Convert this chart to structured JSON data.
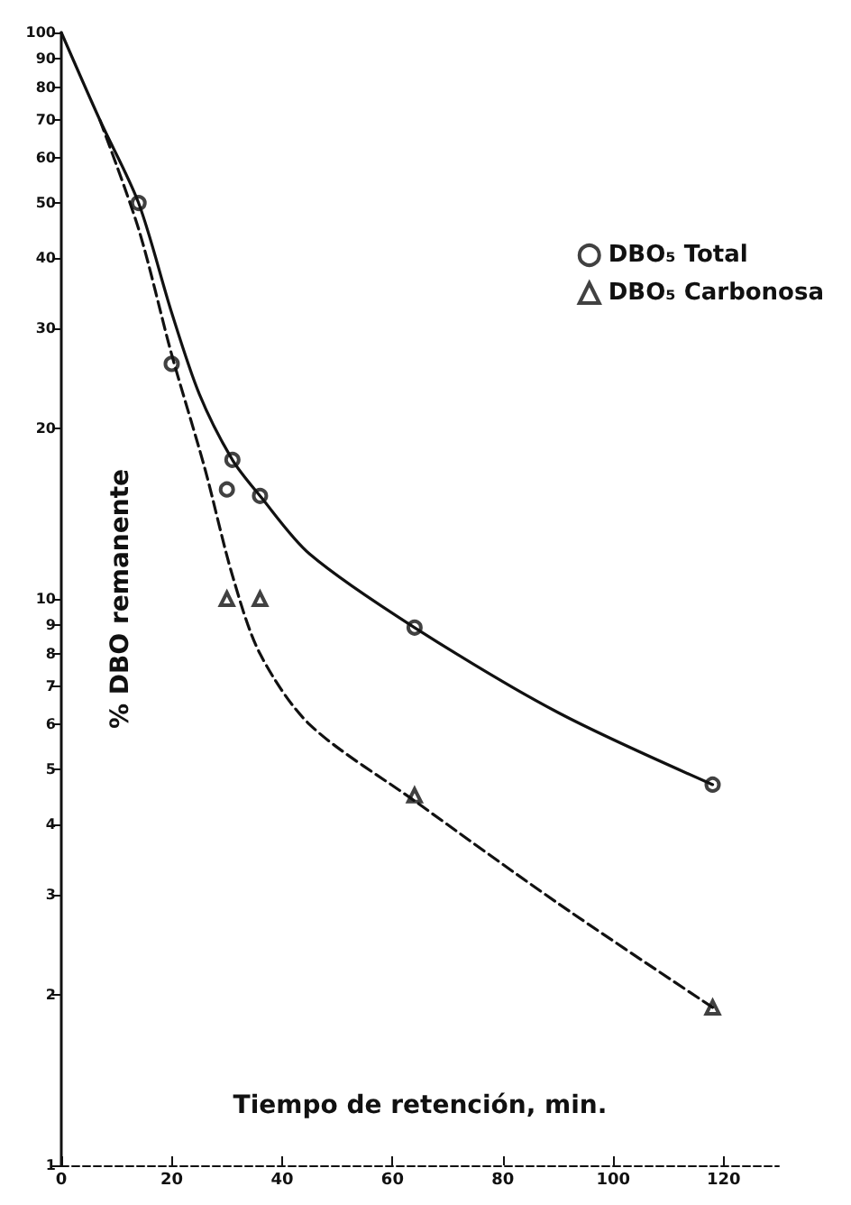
{
  "chart_data": {
    "type": "scatter",
    "xlabel": "Tiempo de retención, min.",
    "ylabel": "% DBO remanente",
    "log": "y",
    "grid": false,
    "legend": "top right",
    "xlim": [
      0,
      130
    ],
    "ylim": [
      1,
      100
    ],
    "xticks": [
      0,
      20,
      40,
      60,
      80,
      100,
      120
    ],
    "yticks": [
      1,
      2,
      3,
      4,
      5,
      6,
      7,
      8,
      9,
      10,
      20,
      30,
      40,
      50,
      60,
      70,
      80,
      90,
      100
    ],
    "series": [
      {
        "name": "DBO₅ Total",
        "marker": "circle",
        "color": "#111111",
        "x": [
          14,
          20,
          30,
          31,
          36,
          64,
          118
        ],
        "values": [
          50,
          26,
          15.6,
          17.6,
          15.2,
          8.9,
          4.7
        ]
      },
      {
        "name": "DBO₅ Carbonosa",
        "marker": "triangle",
        "color": "#111111",
        "x": [
          30,
          36,
          64,
          118
        ],
        "values": [
          10,
          10,
          4.5,
          1.9
        ]
      },
      {
        "type": "line",
        "marker": "none",
        "line_style": "solid",
        "color": "#111111",
        "x": [
          0,
          7,
          14,
          20,
          25,
          31,
          36,
          45,
          64,
          90,
          118
        ],
        "values": [
          100,
          70,
          50,
          32,
          23,
          17.6,
          15.2,
          12,
          8.9,
          6.3,
          4.7
        ]
      },
      {
        "type": "line",
        "marker": "none",
        "line_style": "dashed",
        "color": "#111111",
        "x": [
          7,
          14,
          20,
          26,
          31,
          36,
          45,
          64,
          90,
          118
        ],
        "values": [
          70,
          45,
          27,
          17,
          11,
          8,
          6,
          4.4,
          2.9,
          1.9
        ]
      }
    ]
  }
}
